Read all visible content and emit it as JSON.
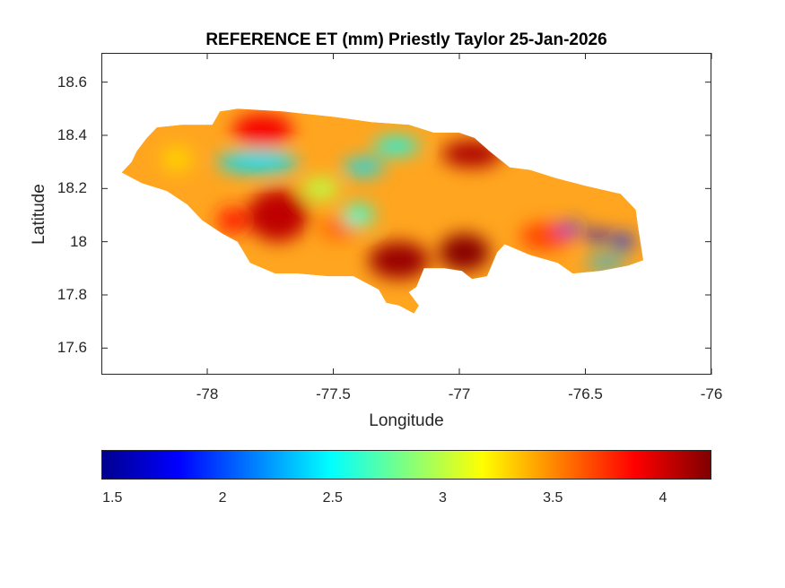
{
  "title": "REFERENCE ET (mm) Priestly Taylor 25-Jan-2026",
  "axes": {
    "xlabel": "Longitude",
    "ylabel": "Latitude",
    "xticks": [
      "-78",
      "-77.5",
      "-77",
      "-76.5",
      "-76"
    ],
    "yticks": [
      "18.6",
      "18.4",
      "18.2",
      "18",
      "17.8",
      "17.6"
    ],
    "xlim": [
      -78.42,
      -76.0
    ],
    "ylim": [
      17.5,
      18.71
    ]
  },
  "colorbar": {
    "colormap": "jet",
    "ticks": [
      "1.5",
      "2",
      "2.5",
      "3",
      "3.5",
      "4"
    ],
    "range": [
      1.45,
      4.22
    ]
  },
  "map": {
    "region_outline_lonlat": [
      [
        -78.34,
        18.26
      ],
      [
        -78.3,
        18.3
      ],
      [
        -78.28,
        18.34
      ],
      [
        -78.24,
        18.39
      ],
      [
        -78.2,
        18.43
      ],
      [
        -78.1,
        18.44
      ],
      [
        -77.98,
        18.44
      ],
      [
        -77.95,
        18.49
      ],
      [
        -77.88,
        18.5
      ],
      [
        -77.7,
        18.49
      ],
      [
        -77.6,
        18.48
      ],
      [
        -77.5,
        18.47
      ],
      [
        -77.35,
        18.45
      ],
      [
        -77.2,
        18.44
      ],
      [
        -77.1,
        18.41
      ],
      [
        -77.0,
        18.41
      ],
      [
        -76.94,
        18.39
      ],
      [
        -76.88,
        18.34
      ],
      [
        -76.8,
        18.28
      ],
      [
        -76.72,
        18.27
      ],
      [
        -76.62,
        18.24
      ],
      [
        -76.5,
        18.21
      ],
      [
        -76.36,
        18.18
      ],
      [
        -76.3,
        18.12
      ],
      [
        -76.29,
        18.05
      ],
      [
        -76.27,
        17.93
      ],
      [
        -76.33,
        17.91
      ],
      [
        -76.44,
        17.89
      ],
      [
        -76.55,
        17.88
      ],
      [
        -76.61,
        17.92
      ],
      [
        -76.72,
        17.95
      ],
      [
        -76.82,
        17.99
      ],
      [
        -76.85,
        17.96
      ],
      [
        -76.89,
        17.87
      ],
      [
        -76.95,
        17.86
      ],
      [
        -76.99,
        17.89
      ],
      [
        -77.06,
        17.9
      ],
      [
        -77.14,
        17.9
      ],
      [
        -77.17,
        17.83
      ],
      [
        -77.2,
        17.81
      ],
      [
        -77.16,
        17.76
      ],
      [
        -77.18,
        17.73
      ],
      [
        -77.24,
        17.76
      ],
      [
        -77.29,
        17.77
      ],
      [
        -77.32,
        17.82
      ],
      [
        -77.42,
        17.87
      ],
      [
        -77.52,
        17.87
      ],
      [
        -77.64,
        17.88
      ],
      [
        -77.73,
        17.88
      ],
      [
        -77.83,
        17.92
      ],
      [
        -77.88,
        18.0
      ],
      [
        -77.94,
        18.03
      ],
      [
        -78.02,
        18.08
      ],
      [
        -78.08,
        18.14
      ],
      [
        -78.16,
        18.19
      ],
      [
        -78.26,
        18.22
      ],
      [
        -78.34,
        18.26
      ]
    ],
    "hotspots": [
      {
        "lon": -77.78,
        "lat": 18.42,
        "rx": 0.12,
        "ry": 0.06,
        "v": 3.9
      },
      {
        "lon": -77.72,
        "lat": 18.1,
        "rx": 0.12,
        "ry": 0.1,
        "v": 4.05
      },
      {
        "lon": -77.9,
        "lat": 18.08,
        "rx": 0.06,
        "ry": 0.05,
        "v": 3.8
      },
      {
        "lon": -77.48,
        "lat": 18.05,
        "rx": 0.08,
        "ry": 0.04,
        "v": 3.6
      },
      {
        "lon": -77.24,
        "lat": 17.93,
        "rx": 0.12,
        "ry": 0.07,
        "v": 4.15
      },
      {
        "lon": -76.98,
        "lat": 17.96,
        "rx": 0.1,
        "ry": 0.07,
        "v": 4.2
      },
      {
        "lon": -76.95,
        "lat": 18.33,
        "rx": 0.12,
        "ry": 0.05,
        "v": 4.1
      },
      {
        "lon": -76.66,
        "lat": 18.02,
        "rx": 0.1,
        "ry": 0.05,
        "v": 3.7
      },
      {
        "lon": -77.38,
        "lat": 18.28,
        "rx": 0.08,
        "ry": 0.03,
        "v": 2.4
      },
      {
        "lon": -77.8,
        "lat": 18.3,
        "rx": 0.16,
        "ry": 0.04,
        "v": 2.4
      },
      {
        "lon": -77.25,
        "lat": 18.36,
        "rx": 0.09,
        "ry": 0.03,
        "v": 2.5
      },
      {
        "lon": -77.4,
        "lat": 18.1,
        "rx": 0.06,
        "ry": 0.04,
        "v": 2.6
      },
      {
        "lon": -76.56,
        "lat": 18.05,
        "rx": 0.05,
        "ry": 0.02,
        "v": 1.9
      },
      {
        "lon": -76.45,
        "lat": 18.02,
        "rx": 0.05,
        "ry": 0.02,
        "v": 1.7
      },
      {
        "lon": -76.35,
        "lat": 18.0,
        "rx": 0.04,
        "ry": 0.03,
        "v": 1.9
      },
      {
        "lon": -76.42,
        "lat": 17.92,
        "rx": 0.08,
        "ry": 0.02,
        "v": 2.3
      },
      {
        "lon": -78.12,
        "lat": 18.31,
        "rx": 0.06,
        "ry": 0.05,
        "v": 3.3
      },
      {
        "lon": -77.55,
        "lat": 18.2,
        "rx": 0.07,
        "ry": 0.04,
        "v": 3.0
      }
    ]
  }
}
